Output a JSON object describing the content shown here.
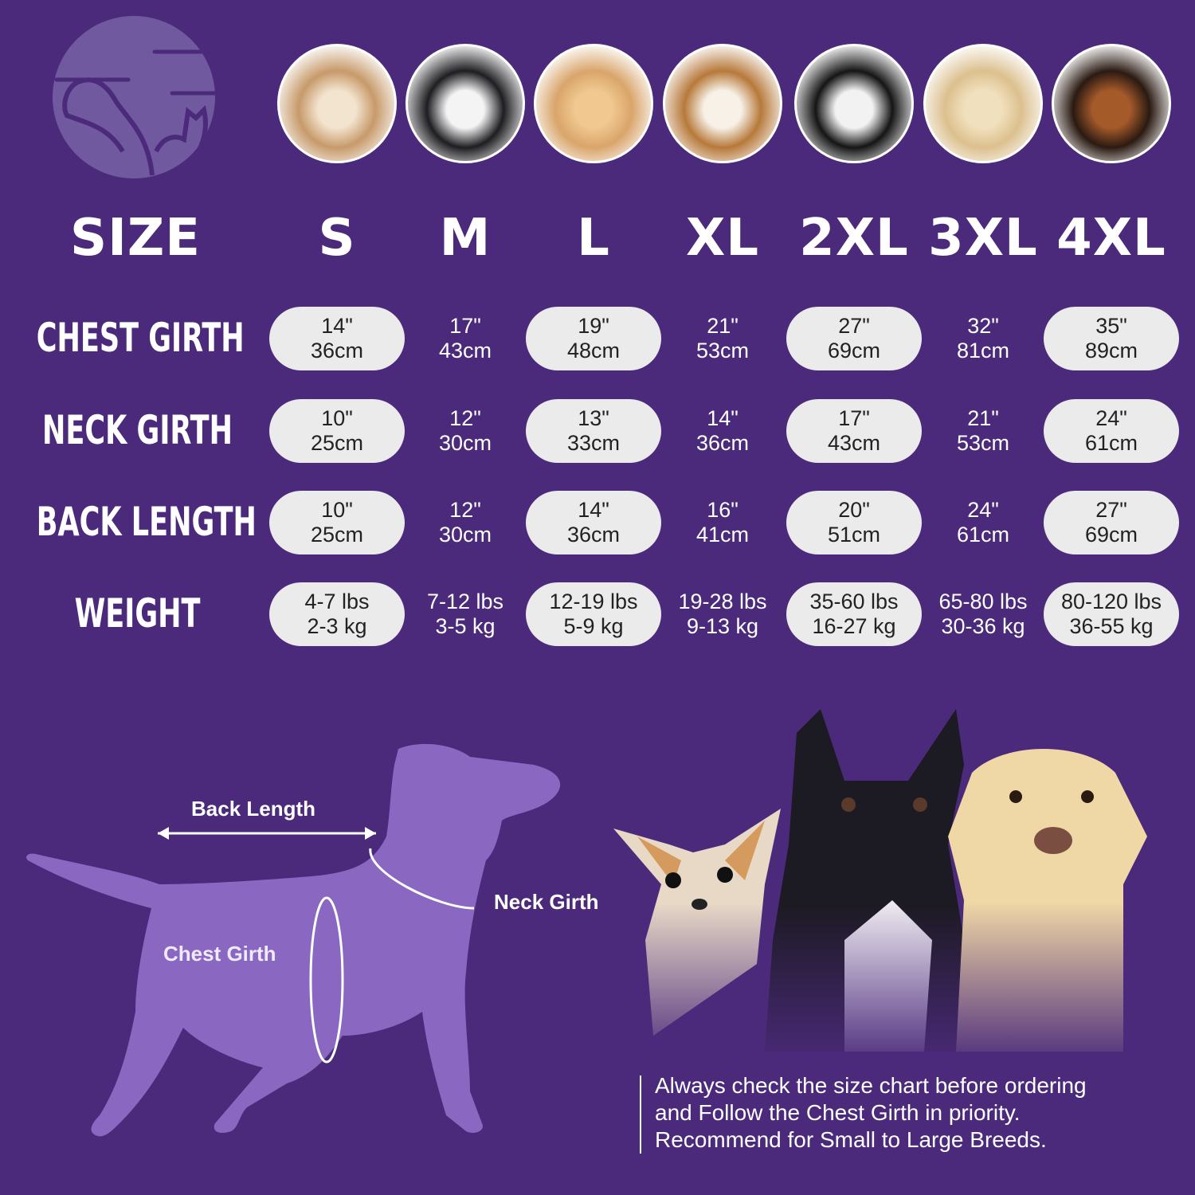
{
  "colors": {
    "background": "#4b2a7b",
    "pill": "#ebebeb",
    "silhouette": "#8a68c2",
    "logo": "#70599e"
  },
  "logo": {
    "icon": "dog-and-cat-logo"
  },
  "breed_photos": [
    "shih-tzu",
    "boston-terrier",
    "cocker-spaniel",
    "beagle",
    "border-collie",
    "labrador",
    "doberman"
  ],
  "size_label": "SIZE",
  "sizes": [
    "S",
    "M",
    "L",
    "XL",
    "2XL",
    "3XL",
    "4XL"
  ],
  "rows": [
    {
      "label": "CHEST GIRTH",
      "values": [
        [
          "14\"",
          "36cm"
        ],
        [
          "17\"",
          "43cm"
        ],
        [
          "19\"",
          "48cm"
        ],
        [
          "21\"",
          "53cm"
        ],
        [
          "27\"",
          "69cm"
        ],
        [
          "32\"",
          "81cm"
        ],
        [
          "35\"",
          "89cm"
        ]
      ]
    },
    {
      "label": "NECK GIRTH",
      "values": [
        [
          "10\"",
          "25cm"
        ],
        [
          "12\"",
          "30cm"
        ],
        [
          "13\"",
          "33cm"
        ],
        [
          "14\"",
          "36cm"
        ],
        [
          "17\"",
          "43cm"
        ],
        [
          "21\"",
          "53cm"
        ],
        [
          "24\"",
          "61cm"
        ]
      ]
    },
    {
      "label": "BACK LENGTH",
      "values": [
        [
          "10\"",
          "25cm"
        ],
        [
          "12\"",
          "30cm"
        ],
        [
          "14\"",
          "36cm"
        ],
        [
          "16\"",
          "41cm"
        ],
        [
          "20\"",
          "51cm"
        ],
        [
          "24\"",
          "61cm"
        ],
        [
          "27\"",
          "69cm"
        ]
      ]
    },
    {
      "label": "WEIGHT",
      "values": [
        [
          "4-7 lbs",
          "2-3 kg"
        ],
        [
          "7-12 lbs",
          "3-5 kg"
        ],
        [
          "12-19 lbs",
          "5-9 kg"
        ],
        [
          "19-28 lbs",
          "9-13 kg"
        ],
        [
          "35-60 lbs",
          "16-27 kg"
        ],
        [
          "65-80 lbs",
          "30-36 kg"
        ],
        [
          "80-120 lbs",
          "36-55 kg"
        ]
      ]
    }
  ],
  "diagram": {
    "back_length": "Back Length",
    "neck_girth": "Neck Girth",
    "chest_girth": "Chest Girth"
  },
  "note": [
    "Always check the size chart before ordering",
    "and Follow the Chest Girth in priority.",
    "Recommend for Small to Large Breeds."
  ]
}
